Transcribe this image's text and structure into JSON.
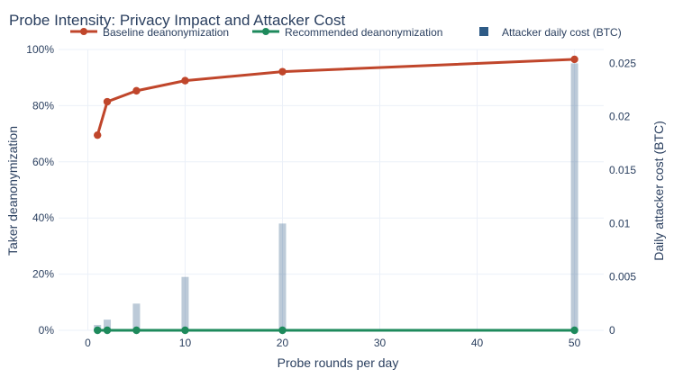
{
  "chart_data": {
    "type": "bar+line",
    "title": "Probe Intensity: Privacy Impact and Attacker Cost",
    "xlabel": "Probe rounds per day",
    "ylabel": "Taker deanonymization",
    "y2label": "Daily attacker cost (BTC)",
    "xlim": [
      -3,
      53
    ],
    "ylim": [
      0,
      1
    ],
    "y2lim": [
      0,
      0.0263
    ],
    "x_ticks": [
      0,
      10,
      20,
      30,
      40,
      50
    ],
    "y_ticks": [
      0,
      0.2,
      0.4,
      0.6,
      0.8,
      1.0
    ],
    "y_tick_labels": [
      "0%",
      "20%",
      "40%",
      "60%",
      "80%",
      "100%"
    ],
    "y2_ticks": [
      0,
      0.005,
      0.01,
      0.015,
      0.02,
      0.025
    ],
    "y2_tick_labels": [
      "0",
      "0.005",
      "0.01",
      "0.015",
      "0.02",
      "0.025"
    ],
    "x_tick_labels": [
      "0",
      "10",
      "20",
      "30",
      "40",
      "50"
    ],
    "legend_position": "top",
    "grid": true,
    "x": [
      1,
      2,
      5,
      10,
      20,
      50
    ],
    "series": [
      {
        "name": "Baseline deanonymization",
        "kind": "line",
        "axis": "y",
        "color": "#c0462b",
        "values": [
          0.695,
          0.814,
          0.853,
          0.889,
          0.921,
          0.965
        ]
      },
      {
        "name": "Recommended deanonymization",
        "kind": "line",
        "axis": "y",
        "color": "#1e8a5c",
        "values": [
          0.0,
          0.0,
          0.0,
          0.0,
          0.0,
          0.0
        ]
      },
      {
        "name": "Attacker daily cost (BTC)",
        "kind": "bar",
        "axis": "y2",
        "color": "#2e5b86",
        "values": [
          0.0005,
          0.001,
          0.0025,
          0.005,
          0.01,
          0.025
        ]
      }
    ]
  }
}
